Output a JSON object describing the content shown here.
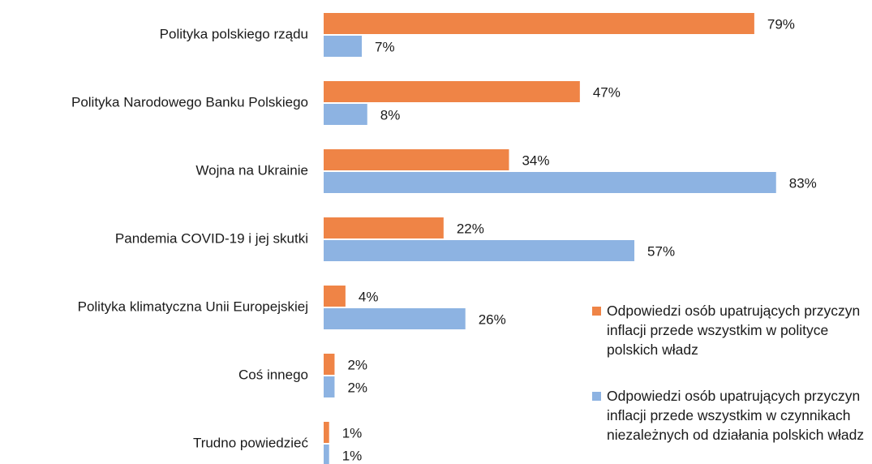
{
  "chart_data": {
    "type": "hbar",
    "categories": [
      "Polityka polskiego rządu",
      "Polityka Narodowego Banku Polskiego",
      "Wojna na Ukrainie",
      "Pandemia COVID-19 i jej skutki",
      "Polityka klimatyczna Unii Europejskiej",
      "Coś innego",
      "Trudno powiedzieć"
    ],
    "series": [
      {
        "name": "Odpowiedzi osób upatrujących przyczyn inflacji przede wszystkim w polityce polskich władz",
        "color": "#ef8446",
        "values": [
          79,
          47,
          34,
          22,
          4,
          2,
          1
        ],
        "value_labels": [
          "79%",
          "47%",
          "34%",
          "22%",
          "4%",
          "2%",
          "1%"
        ]
      },
      {
        "name": "Odpowiedzi osób upatrujących przyczyn inflacji przede wszystkim w czynnikach niezależnych od działania polskich władz",
        "color": "#8db3e2",
        "values": [
          7,
          8,
          83,
          57,
          26,
          2,
          1
        ],
        "value_labels": [
          "7%",
          "8%",
          "83%",
          "57%",
          "26%",
          "2%",
          "1%"
        ]
      }
    ],
    "legend": "bottom-right"
  }
}
